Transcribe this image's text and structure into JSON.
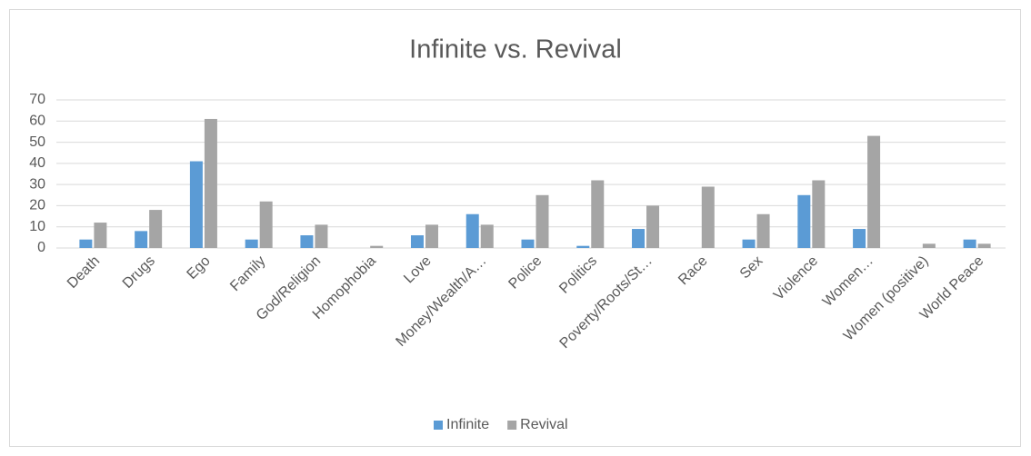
{
  "chart_data": {
    "type": "bar",
    "title": "Infinite vs. Revival",
    "categories": [
      "Death",
      "Drugs",
      "Ego",
      "Family",
      "God/Religion",
      "Homophobia",
      "Love",
      "Money/Wealth/A…",
      "Police",
      "Politics",
      "Poverty/Roots/St…",
      "Race",
      "Sex",
      "Violence",
      "Women…",
      "Women (positive)",
      "World Peace"
    ],
    "series": [
      {
        "name": "Infinite",
        "color": "#5b9bd5",
        "values": [
          4,
          8,
          41,
          4,
          6,
          0,
          6,
          16,
          4,
          1,
          9,
          0,
          4,
          25,
          9,
          0,
          4
        ]
      },
      {
        "name": "Revival",
        "color": "#a5a5a5",
        "values": [
          12,
          18,
          61,
          22,
          11,
          1,
          11,
          11,
          25,
          32,
          20,
          29,
          16,
          32,
          53,
          2,
          2
        ]
      }
    ],
    "ylim": [
      0,
      70
    ],
    "yticks": [
      0,
      10,
      20,
      30,
      40,
      50,
      60,
      70
    ],
    "grid": true,
    "legend": "bottom"
  }
}
